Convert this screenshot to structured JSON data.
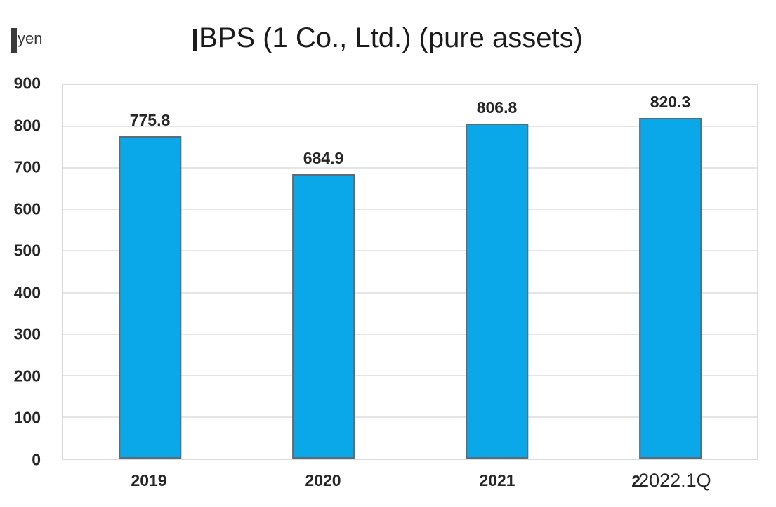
{
  "chart_data": {
    "type": "bar",
    "title": "BPS (1 Co., Ltd.) (pure assets)",
    "ylabel": "yen",
    "xlabel": "",
    "categories": [
      "2019",
      "2020",
      "2021",
      "2022.1Q"
    ],
    "values": [
      775.8,
      684.9,
      806.8,
      820.3
    ],
    "data_labels": [
      "775.8",
      "684.9",
      "806.8",
      "820.3"
    ],
    "x_ticks": [
      {
        "prefix": "",
        "label": "2019",
        "overlay_font": false
      },
      {
        "prefix": "",
        "label": "2020",
        "overlay_font": false
      },
      {
        "prefix": "",
        "label": "2021",
        "overlay_font": false
      },
      {
        "prefix": "2",
        "label": "2022.1Q",
        "overlay_font": true
      }
    ],
    "ylim": [
      0,
      900
    ],
    "yticks": [
      0,
      100,
      200,
      300,
      400,
      500,
      600,
      700,
      800,
      900
    ],
    "grid": true,
    "legend_position": "none",
    "bar_width_pct": 9.07,
    "colors": {
      "bar_fill": "#0aa8e9",
      "bar_border": "#5a6b7a",
      "gridline": "#e3e5e7",
      "plot_border": "#d9dbdd",
      "axis_text": "#262626",
      "title_text": "#1b1b1b"
    }
  }
}
